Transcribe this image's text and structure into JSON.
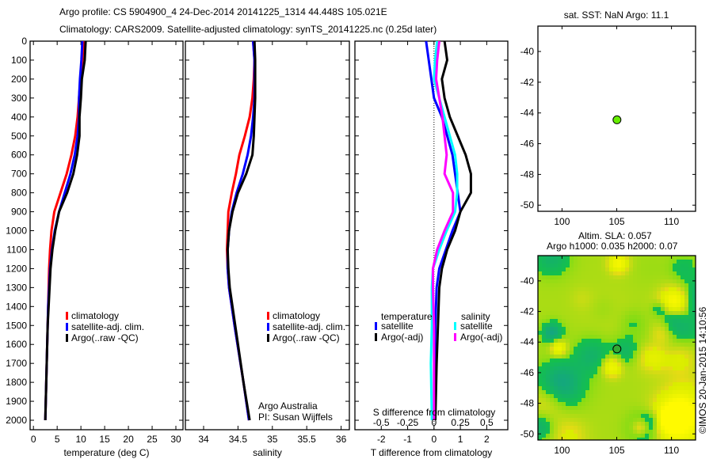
{
  "title_line1": "Argo profile: CS 5904900_4 24-Dec-2014 20141225_1314 44.448S 105.021E",
  "title_line2": "Climatology: CARS2009. Satellite-adjusted climatology: synTS_20141225.nc (0.25d later)",
  "credit": "Argo Australia",
  "pi": "PI: Susan Wijffels",
  "imos_stamp": "©IMOS 20-Jan-2015 14:10:56",
  "colors": {
    "clim": "#ff0000",
    "sat": "#0000ff",
    "argo": "#000000",
    "sal_sat": "#00ffff",
    "sal_argo": "#ff00ff"
  },
  "chart_data": [
    {
      "type": "line",
      "name": "temperature",
      "xlabel": "temperature (deg C)",
      "xlim": [
        -0.7,
        31.5
      ],
      "ylim": [
        0,
        2050
      ],
      "xticks": [
        0,
        5,
        10,
        15,
        20,
        25,
        30
      ],
      "yticks": [
        0,
        100,
        200,
        300,
        400,
        500,
        600,
        700,
        800,
        900,
        1000,
        1100,
        1200,
        1300,
        1400,
        1500,
        1600,
        1700,
        1800,
        1900,
        2000
      ],
      "depth": [
        0,
        100,
        200,
        300,
        400,
        500,
        600,
        700,
        800,
        900,
        1000,
        1100,
        1200,
        1300,
        1400,
        1500,
        1700,
        2000
      ],
      "series": [
        {
          "name": "climatology",
          "color": "#ff0000",
          "values": [
            10.6,
            10.3,
            9.9,
            9.6,
            9.3,
            8.8,
            8.0,
            7.0,
            5.7,
            4.4,
            3.8,
            3.5,
            3.3,
            3.2,
            3.1,
            3.0,
            2.8,
            2.5
          ]
        },
        {
          "name": "satellite-adj. clim.",
          "color": "#0000ff",
          "values": [
            10.3,
            10.1,
            9.8,
            9.6,
            9.6,
            9.3,
            8.7,
            7.8,
            6.6,
            5.4,
            4.5,
            3.9,
            3.5,
            3.3,
            3.1,
            3.0,
            2.8,
            2.5
          ]
        },
        {
          "name": "Argo(..raw -QC)",
          "color": "#000000",
          "values": [
            11.0,
            10.8,
            10.2,
            10.0,
            9.7,
            9.7,
            9.2,
            8.4,
            7.1,
            5.4,
            4.6,
            4.0,
            3.6,
            3.4,
            3.2,
            3.0,
            2.8,
            2.5
          ]
        }
      ]
    },
    {
      "type": "line",
      "name": "salinity",
      "xlabel": "salinity",
      "xlim": [
        33.735,
        36.12
      ],
      "ylim": [
        0,
        2050
      ],
      "xticks": [
        34,
        34.5,
        35,
        35.5,
        36
      ],
      "depth": [
        0,
        100,
        200,
        300,
        400,
        500,
        600,
        700,
        800,
        900,
        1000,
        1100,
        1200,
        1300,
        1500,
        1800,
        2000
      ],
      "series": [
        {
          "name": "climatology",
          "color": "#ff0000",
          "values": [
            34.72,
            34.74,
            34.73,
            34.71,
            34.67,
            34.6,
            34.52,
            34.47,
            34.41,
            34.36,
            34.35,
            34.34,
            34.35,
            34.37,
            34.45,
            34.58,
            34.66
          ]
        },
        {
          "name": "satellite-adj. clim.",
          "color": "#0000ff",
          "values": [
            34.72,
            34.74,
            34.74,
            34.74,
            34.72,
            34.69,
            34.64,
            34.57,
            34.48,
            34.41,
            34.37,
            34.35,
            34.35,
            34.37,
            34.45,
            34.58,
            34.66
          ]
        },
        {
          "name": "Argo(..raw -QC)",
          "color": "#000000",
          "values": [
            34.74,
            34.75,
            34.75,
            34.75,
            34.74,
            34.73,
            34.71,
            34.62,
            34.5,
            34.42,
            34.37,
            34.35,
            34.36,
            34.38,
            34.46,
            34.58,
            34.67
          ]
        }
      ]
    },
    {
      "type": "line",
      "name": "differences",
      "xlabel": "T difference from climatology",
      "x2label": "S difference from climatology",
      "xlim": [
        -3.0,
        2.8
      ],
      "ylim": [
        0,
        2050
      ],
      "xticks": [
        -2,
        -1,
        0,
        1,
        2
      ],
      "x2ticks": [
        -0.5,
        -0.25,
        0,
        0.25,
        0.5
      ],
      "x2ticklabels": [
        "-0.5",
        "-0.25",
        "0",
        "0.25",
        "0.5"
      ],
      "depth": [
        0,
        100,
        200,
        300,
        400,
        500,
        600,
        700,
        800,
        900,
        1000,
        1100,
        1200,
        1300,
        1500,
        1700,
        2000
      ],
      "legend_headers": [
        "temperature",
        "salinity"
      ],
      "series": [
        {
          "name": "satellite",
          "group": "temperature",
          "color": "#0000ff",
          "values": [
            -0.3,
            -0.2,
            -0.1,
            0.0,
            0.3,
            0.5,
            0.7,
            0.8,
            0.9,
            1.0,
            0.7,
            0.45,
            0.2,
            0.1,
            0.05,
            0.03,
            0.0
          ]
        },
        {
          "name": "Argo(-adj)",
          "group": "temperature",
          "color": "#000000",
          "values": [
            0.4,
            0.5,
            0.3,
            0.4,
            0.6,
            0.9,
            1.2,
            1.4,
            1.4,
            1.0,
            0.8,
            0.5,
            0.3,
            0.2,
            0.15,
            0.1,
            0.05
          ]
        },
        {
          "name": "satellite",
          "group": "salinity",
          "color": "#00ffff",
          "values": [
            0.03,
            0.01,
            0.0,
            0.05,
            0.1,
            0.15,
            0.2,
            0.22,
            0.22,
            0.2,
            0.12,
            0.05,
            -0.01,
            -0.02,
            -0.02,
            -0.03,
            -0.02
          ]
        },
        {
          "name": "Argo(-adj)",
          "group": "salinity",
          "color": "#ff00ff",
          "values": [
            0.05,
            0.03,
            0.02,
            0.05,
            0.08,
            0.1,
            0.12,
            0.1,
            0.18,
            0.18,
            0.1,
            0.03,
            -0.01,
            -0.01,
            0.0,
            0.0,
            0.0
          ]
        }
      ]
    },
    {
      "type": "scatter",
      "name": "sst-map",
      "title": "sat. SST: NaN Argo: 11.1",
      "xlim": [
        97.8,
        112.2
      ],
      "ylim": [
        -50.4,
        -38.35
      ],
      "xticks": [
        100,
        105,
        110
      ],
      "yticks": [
        -40,
        -42,
        -44,
        -46,
        -48,
        -50
      ],
      "point": {
        "lon": 105.021,
        "lat": -44.448,
        "color": "#66ee00"
      }
    },
    {
      "type": "heatmap",
      "name": "sla-map",
      "title": "Altim. SLA: 0.057",
      "subtitle": "Argo h1000: 0.035 h2000: 0.07",
      "xlim": [
        97.8,
        112.2
      ],
      "ylim": [
        -50.4,
        -38.35
      ],
      "xticks": [
        100,
        105,
        110
      ],
      "yticks": [
        -40,
        -42,
        -44,
        -46,
        -48,
        -50
      ],
      "point": {
        "lon": 105.021,
        "lat": -44.448,
        "color": "#33aa33"
      }
    }
  ]
}
